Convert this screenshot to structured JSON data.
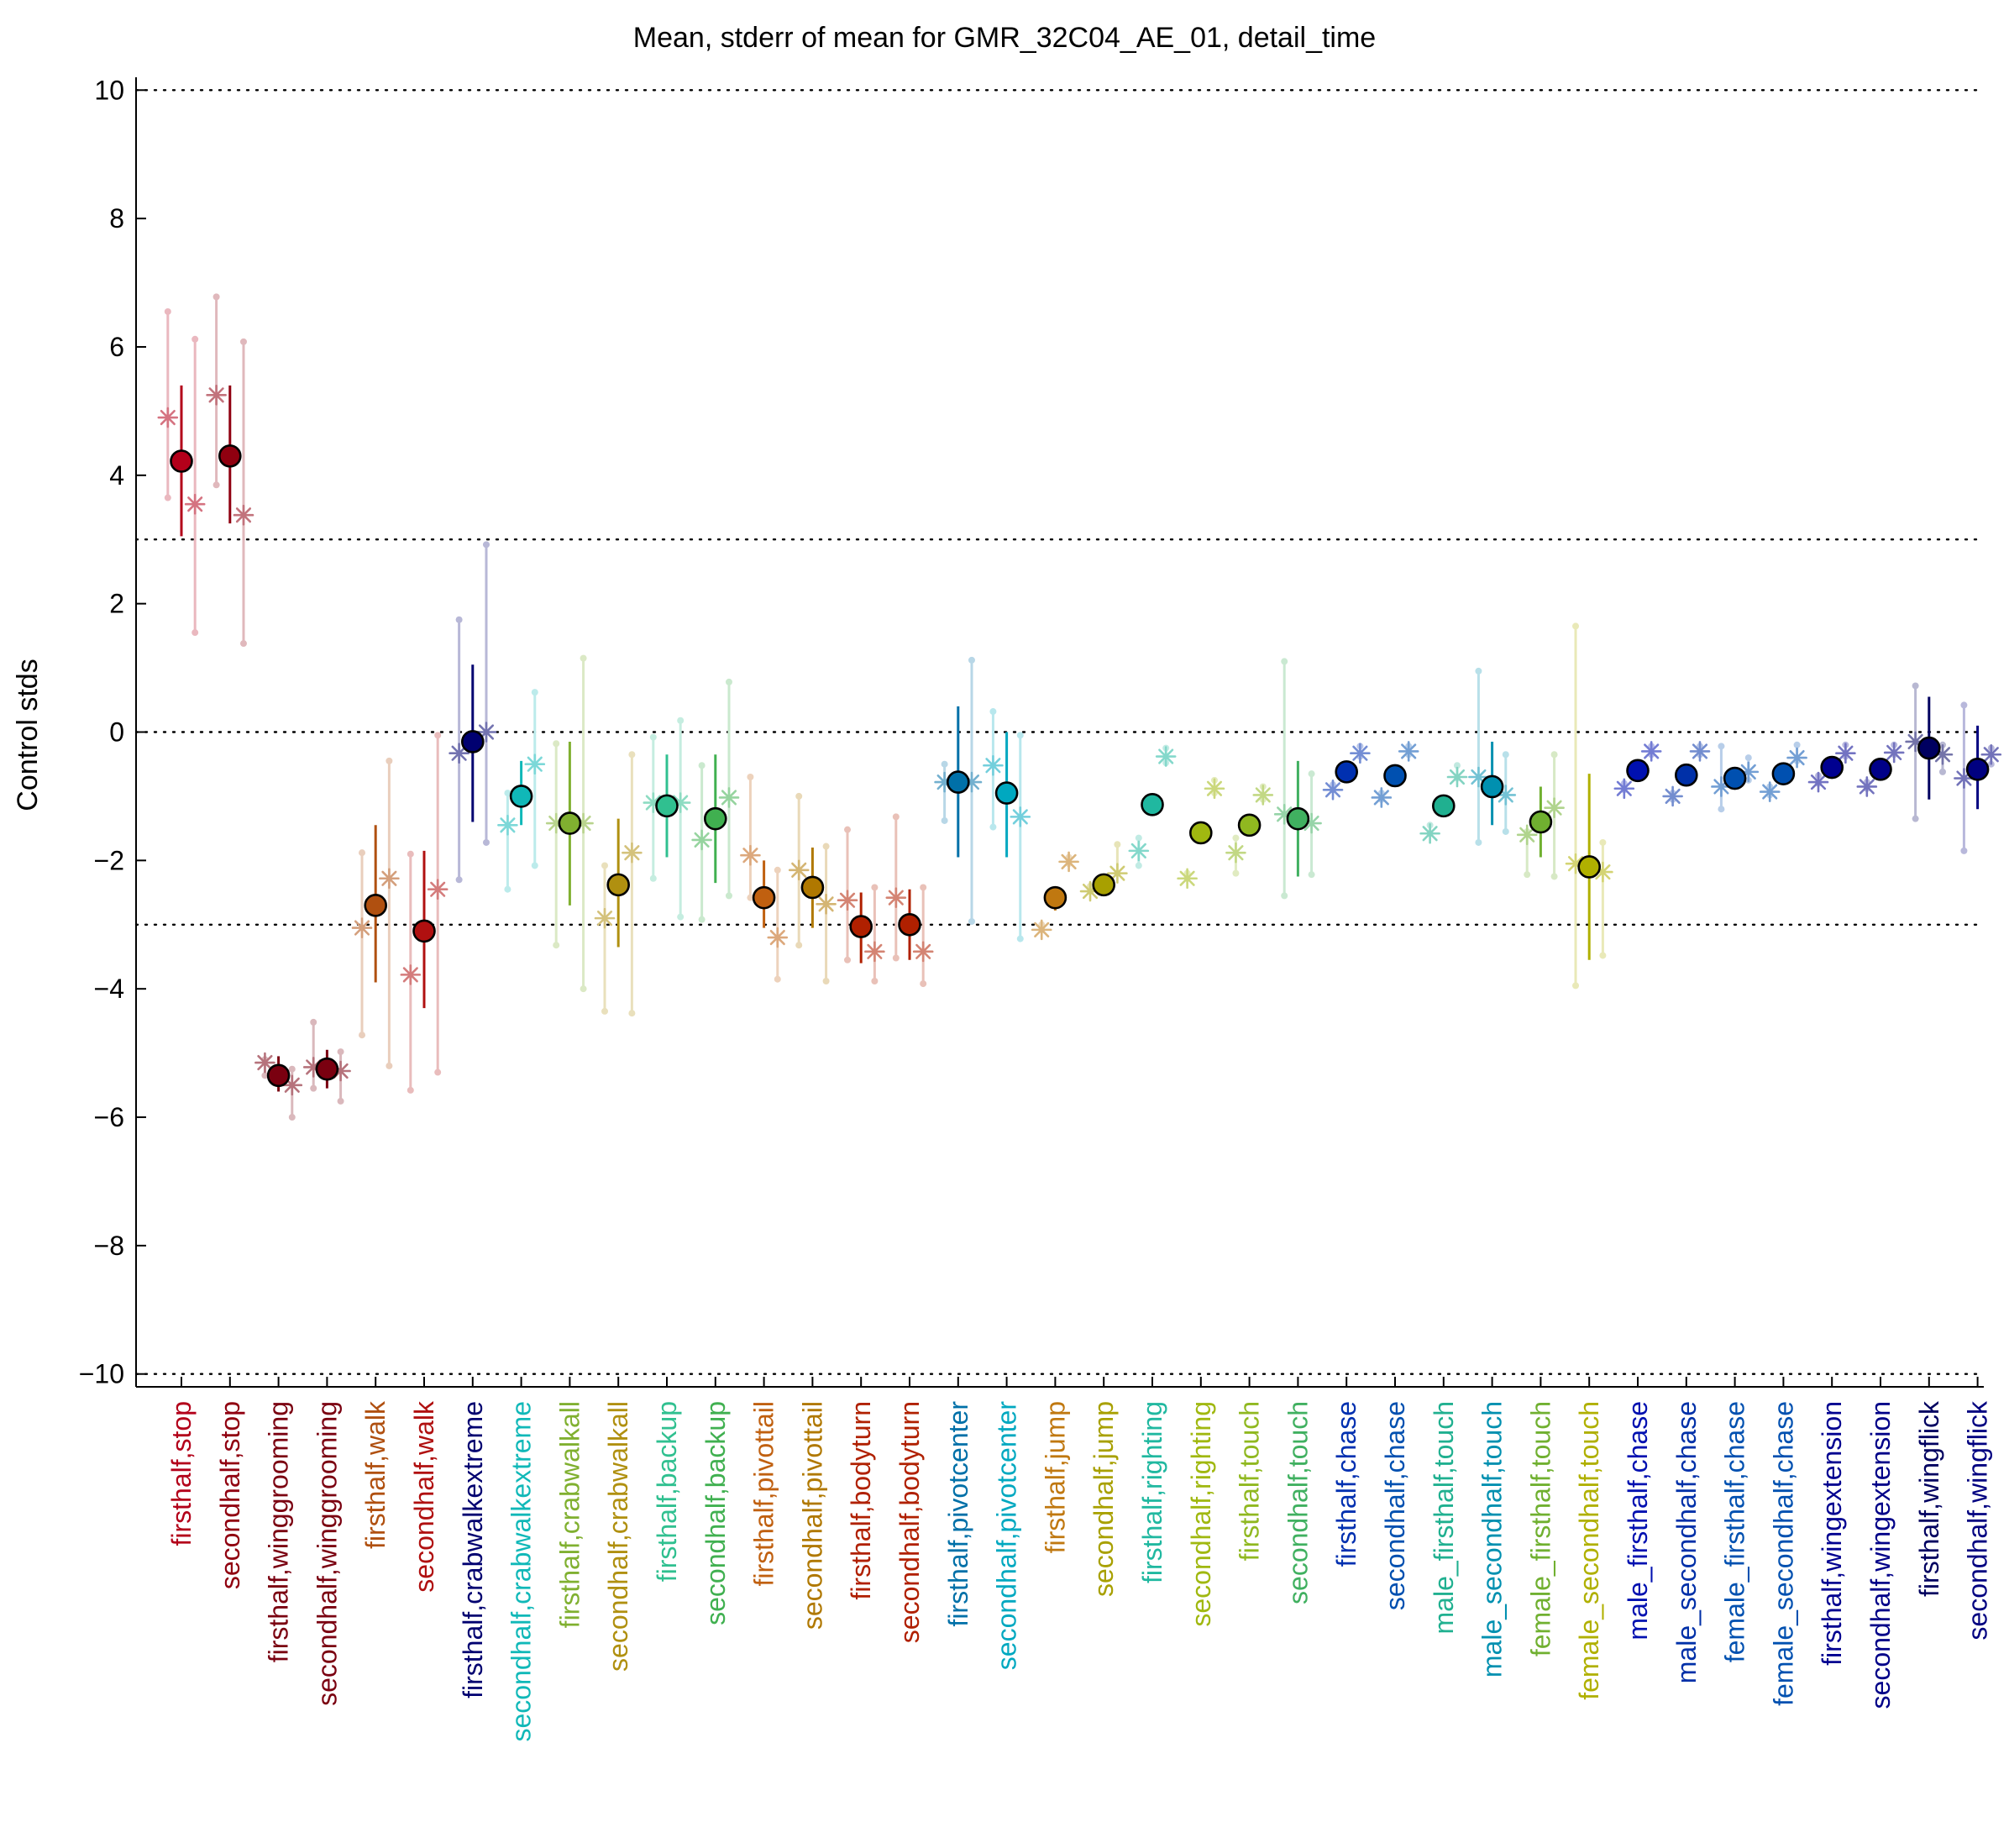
{
  "chart_data": {
    "type": "scatter",
    "title": "Mean, stderr of mean for GMR_32C04_AE_01, detail_time",
    "xlabel": "",
    "ylabel": "Control stds",
    "ylim": [
      -10.2,
      10.2
    ],
    "yticks": [
      10,
      8,
      6,
      4,
      2,
      0,
      -2,
      -4,
      -6,
      -8,
      -10
    ],
    "ytick_labels": [
      "10",
      "8",
      "6",
      "4",
      "2",
      "0",
      "−2",
      "−4",
      "−6",
      "−8",
      "−10"
    ],
    "reference_lines": [
      10,
      3,
      0,
      -3,
      -10
    ],
    "grid": false,
    "legend": "none",
    "categories": [
      "firsthalf,stop",
      "secondhalf,stop",
      "firsthalf,winggrooming",
      "secondhalf,winggrooming",
      "firsthalf,walk",
      "secondhalf,walk",
      "firsthalf,crabwalkextreme",
      "secondhalf,crabwalkextreme",
      "firsthalf,crabwalkall",
      "secondhalf,crabwalkall",
      "firsthalf,backup",
      "secondhalf,backup",
      "firsthalf,pivottail",
      "secondhalf,pivottail",
      "firsthalf,bodyturn",
      "secondhalf,bodyturn",
      "firsthalf,pivotcenter",
      "secondhalf,pivotcenter",
      "firsthalf,jump",
      "secondhalf,jump",
      "firsthalf,righting",
      "secondhalf,righting",
      "firsthalf,touch",
      "secondhalf,touch",
      "firsthalf,chase",
      "secondhalf,chase",
      "male_firsthalf,touch",
      "male_secondhalf,touch",
      "female_firsthalf,touch",
      "female_secondhalf,touch",
      "male_firsthalf,chase",
      "male_secondhalf,chase",
      "female_firsthalf,chase",
      "female_secondhalf,chase",
      "firsthalf,wingextension",
      "secondhalf,wingextension",
      "firsthalf,wingflick",
      "secondhalf,wingflick"
    ],
    "colors": [
      "#b3001a",
      "#900010",
      "#7a0010",
      "#7a0010",
      "#b05010",
      "#b01010",
      "#000070",
      "#10b8b8",
      "#80b030",
      "#b09010",
      "#30c090",
      "#40b050",
      "#c06010",
      "#b07800",
      "#b02000",
      "#b02000",
      "#0070a8",
      "#00a8c0",
      "#c07810",
      "#a8a000",
      "#20b8a0",
      "#a0b810",
      "#90b820",
      "#40b060",
      "#0030b0",
      "#0050b0",
      "#20b090",
      "#0090b0",
      "#70b030",
      "#b0b000",
      "#0010b0",
      "#0030a8",
      "#0050b0",
      "#0050b0",
      "#000090",
      "#000088",
      "#000060",
      "#000080"
    ],
    "mean": [
      4.22,
      4.3,
      -5.35,
      -5.25,
      -2.7,
      -3.1,
      -0.15,
      -1.0,
      -1.42,
      -2.38,
      -1.15,
      -1.35,
      -2.58,
      -2.42,
      -3.03,
      -3.0,
      -0.78,
      -0.95,
      -2.58,
      -2.38,
      -1.13,
      -1.57,
      -1.45,
      -1.35,
      -0.62,
      -0.68,
      -1.15,
      -0.85,
      -1.4,
      -2.1,
      -0.6,
      -0.67,
      -0.72,
      -0.65,
      -0.55,
      -0.58,
      -0.25,
      -0.58
    ],
    "stderr_lower": [
      3.05,
      3.25,
      -5.6,
      -5.55,
      -3.9,
      -4.3,
      -1.4,
      -1.45,
      -2.7,
      -3.35,
      -1.95,
      -2.35,
      -3.05,
      -3.05,
      -3.6,
      -3.55,
      -1.95,
      -1.95,
      -2.78,
      -2.52,
      -1.22,
      -1.65,
      -1.55,
      -2.25,
      -0.7,
      -0.76,
      -1.25,
      -1.45,
      -1.95,
      -3.55,
      -0.68,
      -0.75,
      -0.8,
      -0.73,
      -0.63,
      -0.66,
      -1.05,
      -1.2
    ],
    "stderr_upper": [
      5.4,
      5.4,
      -5.05,
      -4.95,
      -1.45,
      -1.85,
      1.05,
      -0.45,
      -0.15,
      -1.35,
      -0.35,
      -0.35,
      -2.0,
      -1.8,
      -2.5,
      -2.45,
      0.4,
      0.0,
      -2.4,
      -2.25,
      -1.05,
      -1.5,
      -1.35,
      -0.45,
      -0.54,
      -0.6,
      -1.05,
      -0.15,
      -0.85,
      -0.65,
      -0.52,
      -0.59,
      -0.64,
      -0.57,
      -0.47,
      -0.5,
      0.55,
      0.1
    ],
    "star_offsets_x": [
      -0.28,
      0.28
    ],
    "star_values": [
      [
        4.9,
        3.55
      ],
      [
        5.25,
        3.38
      ],
      [
        -5.15,
        -5.5
      ],
      [
        -5.22,
        -5.28
      ],
      [
        -3.05,
        -2.28
      ],
      [
        -3.78,
        -2.45
      ],
      [
        -0.33,
        0.0
      ],
      [
        -1.45,
        -0.5
      ],
      [
        -1.42,
        -1.42
      ],
      [
        -2.9,
        -1.88
      ],
      [
        -1.1,
        -1.1
      ],
      [
        -1.68,
        -1.02
      ],
      [
        -1.92,
        -3.2
      ],
      [
        -2.15,
        -2.68
      ],
      [
        -2.62,
        -3.42
      ],
      [
        -2.58,
        -3.42
      ],
      [
        -0.78,
        -0.78
      ],
      [
        -0.52,
        -1.32
      ],
      [
        -3.08,
        -2.02
      ],
      [
        -2.48,
        -2.2
      ],
      [
        -1.85,
        -0.38
      ],
      [
        -2.28,
        -0.88
      ],
      [
        -1.88,
        -0.98
      ],
      [
        -1.28,
        -1.42
      ],
      [
        -0.9,
        -0.33
      ],
      [
        -1.02,
        -0.3
      ],
      [
        -1.58,
        -0.7
      ],
      [
        -0.7,
        -0.98
      ],
      [
        -1.6,
        -1.18
      ],
      [
        -2.05,
        -2.18
      ],
      [
        -0.88,
        -0.3
      ],
      [
        -1.0,
        -0.3
      ],
      [
        -0.85,
        -0.62
      ],
      [
        -0.93,
        -0.4
      ],
      [
        -0.78,
        -0.33
      ],
      [
        -0.85,
        -0.32
      ],
      [
        -0.15,
        -0.35
      ],
      [
        -0.72,
        -0.35
      ]
    ],
    "faint_range_lower": [
      [
        3.65,
        1.55
      ],
      [
        3.85,
        1.38
      ],
      [
        -5.35,
        -6.0
      ],
      [
        -5.55,
        -5.75
      ],
      [
        -4.72,
        -5.2
      ],
      [
        -5.58,
        -5.3
      ],
      [
        -2.3,
        -1.72
      ],
      [
        -2.45,
        -2.08
      ],
      [
        -3.32,
        -4.0
      ],
      [
        -4.35,
        -4.38
      ],
      [
        -2.28,
        -2.88
      ],
      [
        -2.92,
        -2.55
      ],
      [
        -2.58,
        -3.85
      ],
      [
        -3.32,
        -3.88
      ],
      [
        -3.55,
        -3.88
      ],
      [
        -3.52,
        -3.92
      ],
      [
        -1.38,
        -2.95
      ],
      [
        -1.48,
        -3.22
      ],
      [
        -3.08,
        -2.05
      ],
      [
        -2.48,
        -2.2
      ],
      [
        -2.08,
        -0.48
      ],
      [
        -2.28,
        -0.95
      ],
      [
        -2.2,
        -1.05
      ],
      [
        -2.55,
        -2.22
      ],
      [
        -0.9,
        -0.38
      ],
      [
        -1.05,
        -0.35
      ],
      [
        -1.58,
        -0.72
      ],
      [
        -1.72,
        -1.55
      ],
      [
        -2.22,
        -2.25
      ],
      [
        -3.95,
        -3.48
      ],
      [
        -0.9,
        -0.35
      ],
      [
        -1.05,
        -0.35
      ],
      [
        -1.2,
        -0.75
      ],
      [
        -0.98,
        -0.45
      ],
      [
        -0.8,
        -0.38
      ],
      [
        -0.88,
        -0.35
      ],
      [
        -1.35,
        -0.62
      ],
      [
        -1.85,
        -0.5
      ]
    ],
    "faint_range_upper": [
      [
        6.55,
        6.12
      ],
      [
        6.78,
        6.08
      ],
      [
        -5.1,
        -5.25
      ],
      [
        -4.52,
        -4.98
      ],
      [
        -1.88,
        -0.45
      ],
      [
        -1.9,
        -0.05
      ],
      [
        1.75,
        2.92
      ],
      [
        -0.95,
        0.62
      ],
      [
        -0.18,
        1.15
      ],
      [
        -2.08,
        -0.35
      ],
      [
        -0.08,
        0.18
      ],
      [
        -0.52,
        0.78
      ],
      [
        -0.7,
        -2.15
      ],
      [
        -1.0,
        -1.78
      ],
      [
        -1.52,
        -2.42
      ],
      [
        -1.32,
        -2.42
      ],
      [
        -0.5,
        1.12
      ],
      [
        0.32,
        -0.05
      ],
      [
        -3.0,
        -1.95
      ],
      [
        -2.4,
        -1.75
      ],
      [
        -1.65,
        -0.25
      ],
      [
        -2.2,
        -0.75
      ],
      [
        -1.65,
        -0.85
      ],
      [
        1.1,
        -0.65
      ],
      [
        -0.82,
        -0.22
      ],
      [
        -0.95,
        -0.22
      ],
      [
        -1.45,
        -0.52
      ],
      [
        0.95,
        -0.35
      ],
      [
        -1.55,
        -0.35
      ],
      [
        1.65,
        -1.72
      ],
      [
        -0.8,
        -0.22
      ],
      [
        -0.95,
        -0.22
      ],
      [
        -0.22,
        -0.4
      ],
      [
        -0.85,
        -0.2
      ],
      [
        -0.68,
        -0.2
      ],
      [
        -0.78,
        -0.2
      ],
      [
        0.72,
        -0.2
      ],
      [
        0.42,
        -0.25
      ]
    ]
  }
}
